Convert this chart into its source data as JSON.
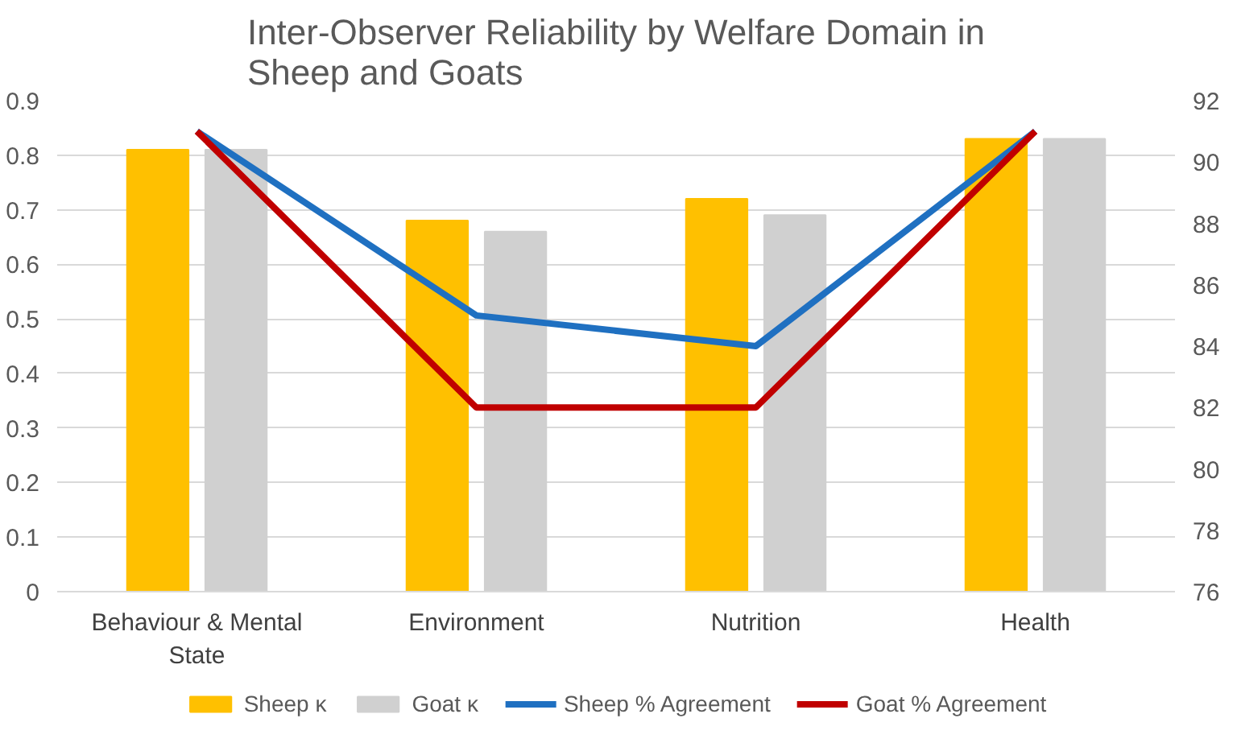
{
  "chart_data": {
    "type": "bar",
    "title": "Inter-Observer Reliability by Welfare Domain in Sheep and Goats",
    "categories": [
      "Behaviour & Mental State",
      "Environment",
      "Nutrition",
      "Health"
    ],
    "series": [
      {
        "name": "Sheep κ",
        "color": "#ffc000",
        "values": [
          0.81,
          0.68,
          0.72,
          0.83
        ]
      },
      {
        "name": "Goat κ",
        "color": "#d0d0d0",
        "values": [
          0.81,
          0.66,
          0.69,
          0.83
        ]
      },
      {
        "name": "Sheep % Agreement",
        "type": "line",
        "axis": "y2",
        "color": "#1f70c1",
        "values": [
          91,
          85,
          84,
          91
        ]
      },
      {
        "name": "Goat % Agreement",
        "type": "line",
        "axis": "y2",
        "color": "#c00000",
        "values": [
          91,
          82,
          82,
          91
        ]
      }
    ],
    "ylim": [
      0,
      0.9
    ],
    "yticks": [
      0,
      0.1,
      0.2,
      0.3,
      0.4,
      0.5,
      0.6,
      0.7,
      0.8,
      0.9
    ],
    "y2lim": [
      76,
      92
    ],
    "y2ticks": [
      76,
      78,
      80,
      82,
      84,
      86,
      88,
      90,
      92
    ],
    "grid": "y",
    "legend": "bottom",
    "marker": "none",
    "line_style": "solid"
  }
}
